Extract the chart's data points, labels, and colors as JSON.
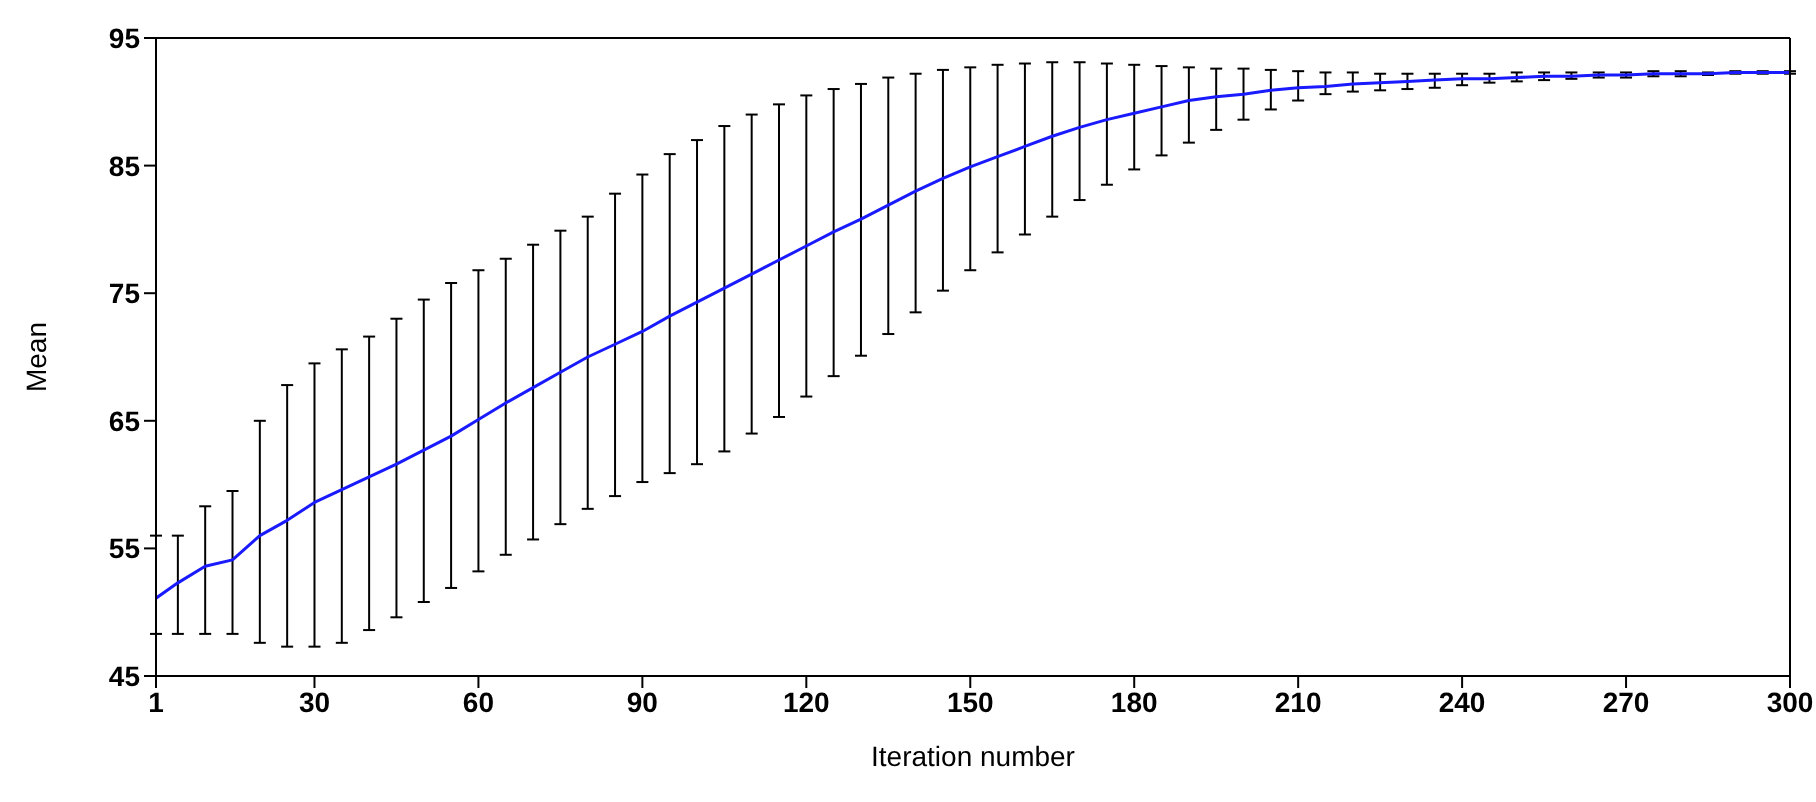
{
  "chart_data": {
    "type": "line",
    "xlabel": "Iteration number",
    "ylabel": "Mean",
    "x": [
      1,
      5,
      10,
      15,
      20,
      25,
      30,
      35,
      40,
      45,
      50,
      55,
      60,
      65,
      70,
      75,
      80,
      85,
      90,
      95,
      100,
      105,
      110,
      115,
      120,
      125,
      130,
      135,
      140,
      145,
      150,
      155,
      160,
      165,
      170,
      175,
      180,
      185,
      190,
      195,
      200,
      205,
      210,
      215,
      220,
      225,
      230,
      235,
      240,
      245,
      250,
      255,
      260,
      265,
      270,
      275,
      280,
      285,
      290,
      295,
      300
    ],
    "xlim": [
      1,
      300
    ],
    "xticks": [
      1,
      30,
      60,
      90,
      120,
      150,
      180,
      210,
      240,
      270,
      300
    ],
    "ylim": [
      45,
      95
    ],
    "yticks": [
      45,
      55,
      65,
      75,
      85,
      95
    ],
    "series": [
      {
        "color": "#1a1aff",
        "values": [
          51.1,
          52.3,
          53.6,
          54.1,
          56.0,
          57.2,
          58.6,
          59.6,
          60.6,
          61.6,
          62.7,
          63.8,
          65.1,
          66.4,
          67.6,
          68.8,
          70.0,
          71.0,
          72.0,
          73.2,
          74.3,
          75.4,
          76.5,
          77.6,
          78.7,
          79.8,
          80.8,
          81.9,
          83.0,
          84.0,
          84.9,
          85.7,
          86.5,
          87.3,
          88.0,
          88.6,
          89.1,
          89.6,
          90.1,
          90.4,
          90.6,
          90.9,
          91.1,
          91.2,
          91.4,
          91.5,
          91.6,
          91.7,
          91.8,
          91.8,
          91.9,
          92.0,
          92.0,
          92.1,
          92.1,
          92.2,
          92.2,
          92.2,
          92.3,
          92.3,
          92.3
        ],
        "errors": [
          [
            48.3,
            56.0
          ],
          [
            48.3,
            56.0
          ],
          [
            48.3,
            58.3
          ],
          [
            48.3,
            59.5
          ],
          [
            47.6,
            65.0
          ],
          [
            47.3,
            67.8
          ],
          [
            47.3,
            69.5
          ],
          [
            47.6,
            70.6
          ],
          [
            48.6,
            71.6
          ],
          [
            49.6,
            73.0
          ],
          [
            50.8,
            74.5
          ],
          [
            51.9,
            75.8
          ],
          [
            53.2,
            76.8
          ],
          [
            54.5,
            77.7
          ],
          [
            55.7,
            78.8
          ],
          [
            56.9,
            79.9
          ],
          [
            58.1,
            81.0
          ],
          [
            59.1,
            82.8
          ],
          [
            60.2,
            84.3
          ],
          [
            60.9,
            85.9
          ],
          [
            61.6,
            87.0
          ],
          [
            62.6,
            88.1
          ],
          [
            64.0,
            89.0
          ],
          [
            65.3,
            89.8
          ],
          [
            66.9,
            90.5
          ],
          [
            68.5,
            91.0
          ],
          [
            70.1,
            91.4
          ],
          [
            71.8,
            91.9
          ],
          [
            73.5,
            92.2
          ],
          [
            75.2,
            92.5
          ],
          [
            76.8,
            92.7
          ],
          [
            78.2,
            92.9
          ],
          [
            79.6,
            93.0
          ],
          [
            81.0,
            93.1
          ],
          [
            82.3,
            93.1
          ],
          [
            83.5,
            93.0
          ],
          [
            84.7,
            92.9
          ],
          [
            85.8,
            92.8
          ],
          [
            86.8,
            92.7
          ],
          [
            87.8,
            92.6
          ],
          [
            88.6,
            92.6
          ],
          [
            89.4,
            92.5
          ],
          [
            90.1,
            92.4
          ],
          [
            90.6,
            92.3
          ],
          [
            90.8,
            92.3
          ],
          [
            90.9,
            92.2
          ],
          [
            91.0,
            92.2
          ],
          [
            91.1,
            92.2
          ],
          [
            91.3,
            92.2
          ],
          [
            91.5,
            92.2
          ],
          [
            91.6,
            92.3
          ],
          [
            91.7,
            92.3
          ],
          [
            91.8,
            92.3
          ],
          [
            91.9,
            92.3
          ],
          [
            91.9,
            92.3
          ],
          [
            92.0,
            92.4
          ],
          [
            92.0,
            92.4
          ],
          [
            92.1,
            92.3
          ],
          [
            92.2,
            92.4
          ],
          [
            92.2,
            92.4
          ],
          [
            92.2,
            92.4
          ]
        ]
      }
    ]
  }
}
